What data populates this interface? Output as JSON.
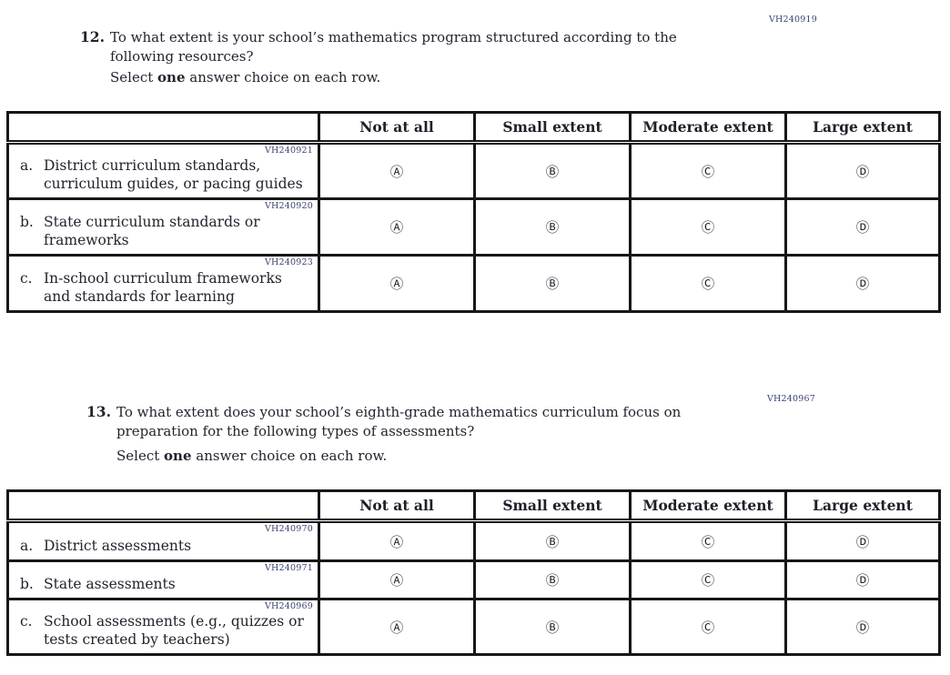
{
  "colors": {
    "text": "#21242e",
    "code_text": "#3b4272",
    "table_border": "#17171a",
    "background": "#ffffff"
  },
  "questions": [
    {
      "number": "12.",
      "code": "VH240919",
      "text_lines": [
        "To what extent is your school’s mathematics program structured according to the",
        "following resources?"
      ],
      "instruction": {
        "prefix": "Select ",
        "bold": "one",
        "suffix": " answer choice on each row."
      },
      "table": {
        "column_headers": [
          "Not at all",
          "Small extent",
          "Moderate extent",
          "Large extent"
        ],
        "options": [
          "Ⓐ",
          "Ⓑ",
          "Ⓒ",
          "Ⓓ"
        ],
        "rows": [
          {
            "code": "VH240921",
            "letter": "a.",
            "label": "District curriculum standards, curriculum guides, or pacing guides"
          },
          {
            "code": "VH240920",
            "letter": "b.",
            "label": "State curriculum standards or frameworks"
          },
          {
            "code": "VH240923",
            "letter": "c.",
            "label": "In-school curriculum frameworks and standards for learning"
          }
        ]
      }
    },
    {
      "number": "13.",
      "code": "VH240967",
      "text_lines": [
        "To what extent does your school’s eighth-grade mathematics curriculum focus on",
        "preparation for the following types of assessments?"
      ],
      "instruction": {
        "prefix": "Select ",
        "bold": "one",
        "suffix": " answer choice on each row."
      },
      "table": {
        "column_headers": [
          "Not at all",
          "Small extent",
          "Moderate extent",
          "Large extent"
        ],
        "options": [
          "Ⓐ",
          "Ⓑ",
          "Ⓒ",
          "Ⓓ"
        ],
        "rows": [
          {
            "code": "VH240970",
            "letter": "a.",
            "label": "District assessments"
          },
          {
            "code": "VH240971",
            "letter": "b.",
            "label": "State assessments"
          },
          {
            "code": "VH240969",
            "letter": "c.",
            "label": "School assessments (e.g., quizzes or tests created by teachers)"
          }
        ]
      }
    }
  ]
}
